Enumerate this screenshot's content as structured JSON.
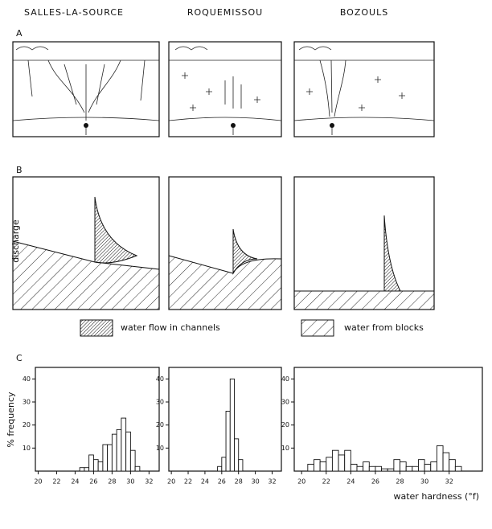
{
  "columns": [
    "SALLES-LA-SOURCE",
    "ROQUEMISSOU",
    "BOZOULS"
  ],
  "panel_labels": [
    "A",
    "B",
    "C"
  ],
  "discharge_label": "discharge",
  "legend": [
    "water flow in channels",
    "water from blocks"
  ],
  "chart_data": [
    {
      "type": "histogram",
      "y_label": "% frequency",
      "bins": [
        24.5,
        25,
        25.5,
        26,
        26.5,
        27,
        27.5,
        28,
        28.5,
        29,
        29.5,
        30,
        30.5,
        31
      ],
      "values": [
        1.5,
        1.5,
        7,
        5,
        4,
        11.5,
        11.5,
        16,
        18,
        23,
        17,
        9,
        2
      ],
      "xlim": [
        19.7,
        33.1
      ],
      "ylim": [
        0,
        45
      ],
      "xticks": [
        20,
        22,
        24,
        26,
        28,
        30,
        32
      ],
      "yticks": [
        10,
        20,
        30,
        40
      ],
      "color": "#ffffff"
    },
    {
      "type": "histogram",
      "bins": [
        25.5,
        26,
        26.5,
        27,
        27.5,
        28,
        28.5
      ],
      "values": [
        2,
        6,
        26,
        40,
        14,
        5
      ],
      "xlim": [
        19.7,
        33.1
      ],
      "ylim": [
        0,
        45
      ],
      "xticks": [
        20,
        22,
        24,
        26,
        28,
        30,
        32
      ],
      "yticks": [
        10,
        20,
        30,
        40
      ],
      "color": "#ffffff"
    },
    {
      "type": "histogram",
      "x_label": "water hardness (°f)",
      "bins": [
        20.5,
        21,
        21.5,
        22,
        22.5,
        23,
        23.5,
        24,
        24.5,
        25,
        25.5,
        26,
        26.5,
        27,
        27.5,
        28,
        28.5,
        29,
        29.5,
        30,
        30.5,
        31,
        31.5,
        32,
        32.5,
        33
      ],
      "values": [
        3,
        5,
        4,
        6,
        9,
        7,
        9,
        3,
        2,
        4,
        2,
        2,
        1,
        1,
        5,
        4,
        2,
        2,
        5,
        3,
        4,
        11,
        8,
        5,
        2
      ],
      "xlim": [
        19.4,
        34.7
      ],
      "ylim": [
        0,
        45
      ],
      "xticks": [
        20,
        22,
        24,
        26,
        28,
        30,
        32
      ],
      "yticks": [
        10,
        20,
        30,
        40
      ],
      "color": "#ffffff"
    }
  ]
}
